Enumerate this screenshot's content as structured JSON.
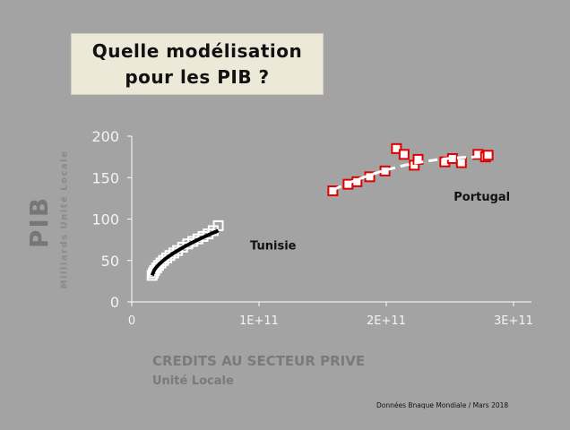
{
  "title_lines": [
    "Quelle modélisation",
    "pour les PIB ?"
  ],
  "source_note": "Données  Bnaque Mondiale / Mars 2018",
  "colors": {
    "background": "#a3a3a3",
    "tunisie_marker": "#ffffff",
    "tunisie_trend": "#000000",
    "portugal_marker": "#e00000",
    "portugal_trend": "#ffffff"
  },
  "chart_data": {
    "type": "scatter",
    "title": "Quelle modélisation pour les PIB ?",
    "ylabel": "PIB",
    "ylabel_sub": "Milliards Unité Locale",
    "xlabel": "CREDITS AU SECTEUR PRIVE",
    "xlabel_sub": "Unité Locale",
    "xlim": [
      0,
      300000000000
    ],
    "ylim": [
      0,
      200
    ],
    "xticks": [
      0,
      100000000000,
      200000000000,
      300000000000
    ],
    "xtick_labels": [
      "0",
      "1E+11",
      "2E+11",
      "3E+11"
    ],
    "yticks": [
      0,
      50,
      100,
      150,
      200
    ],
    "ytick_labels": [
      "0",
      "50",
      "100",
      "150",
      "200"
    ],
    "grid": false,
    "series": [
      {
        "name": "Tunisie",
        "marker": "hollow-square",
        "trend": "solid",
        "x": [
          16000000000,
          17000000000,
          18000000000,
          19500000000,
          21000000000,
          23000000000,
          25000000000,
          27500000000,
          30000000000,
          33000000000,
          36000000000,
          40000000000,
          44000000000,
          48000000000,
          52000000000,
          56000000000,
          60000000000,
          64000000000,
          68000000000
        ],
        "y": [
          32,
          35,
          38,
          41,
          44,
          47,
          50,
          53,
          56,
          59,
          62,
          66,
          70,
          73,
          76,
          79,
          82,
          86,
          92
        ]
      },
      {
        "name": "Portugal",
        "marker": "hollow-square",
        "trend": "dashed",
        "x": [
          158000000000,
          170000000000,
          177000000000,
          187000000000,
          199000000000,
          208000000000,
          214000000000,
          222000000000,
          225000000000,
          246000000000,
          252000000000,
          259000000000,
          272000000000,
          278000000000,
          280000000000
        ],
        "y": [
          134,
          142,
          145,
          151,
          158,
          185,
          178,
          165,
          172,
          169,
          173,
          168,
          178,
          175,
          177
        ]
      }
    ],
    "annotations": [
      {
        "text": "Tunisie",
        "x": 93000000000,
        "y": 63
      },
      {
        "text": "Portugal",
        "x": 253000000000,
        "y": 122
      }
    ]
  }
}
